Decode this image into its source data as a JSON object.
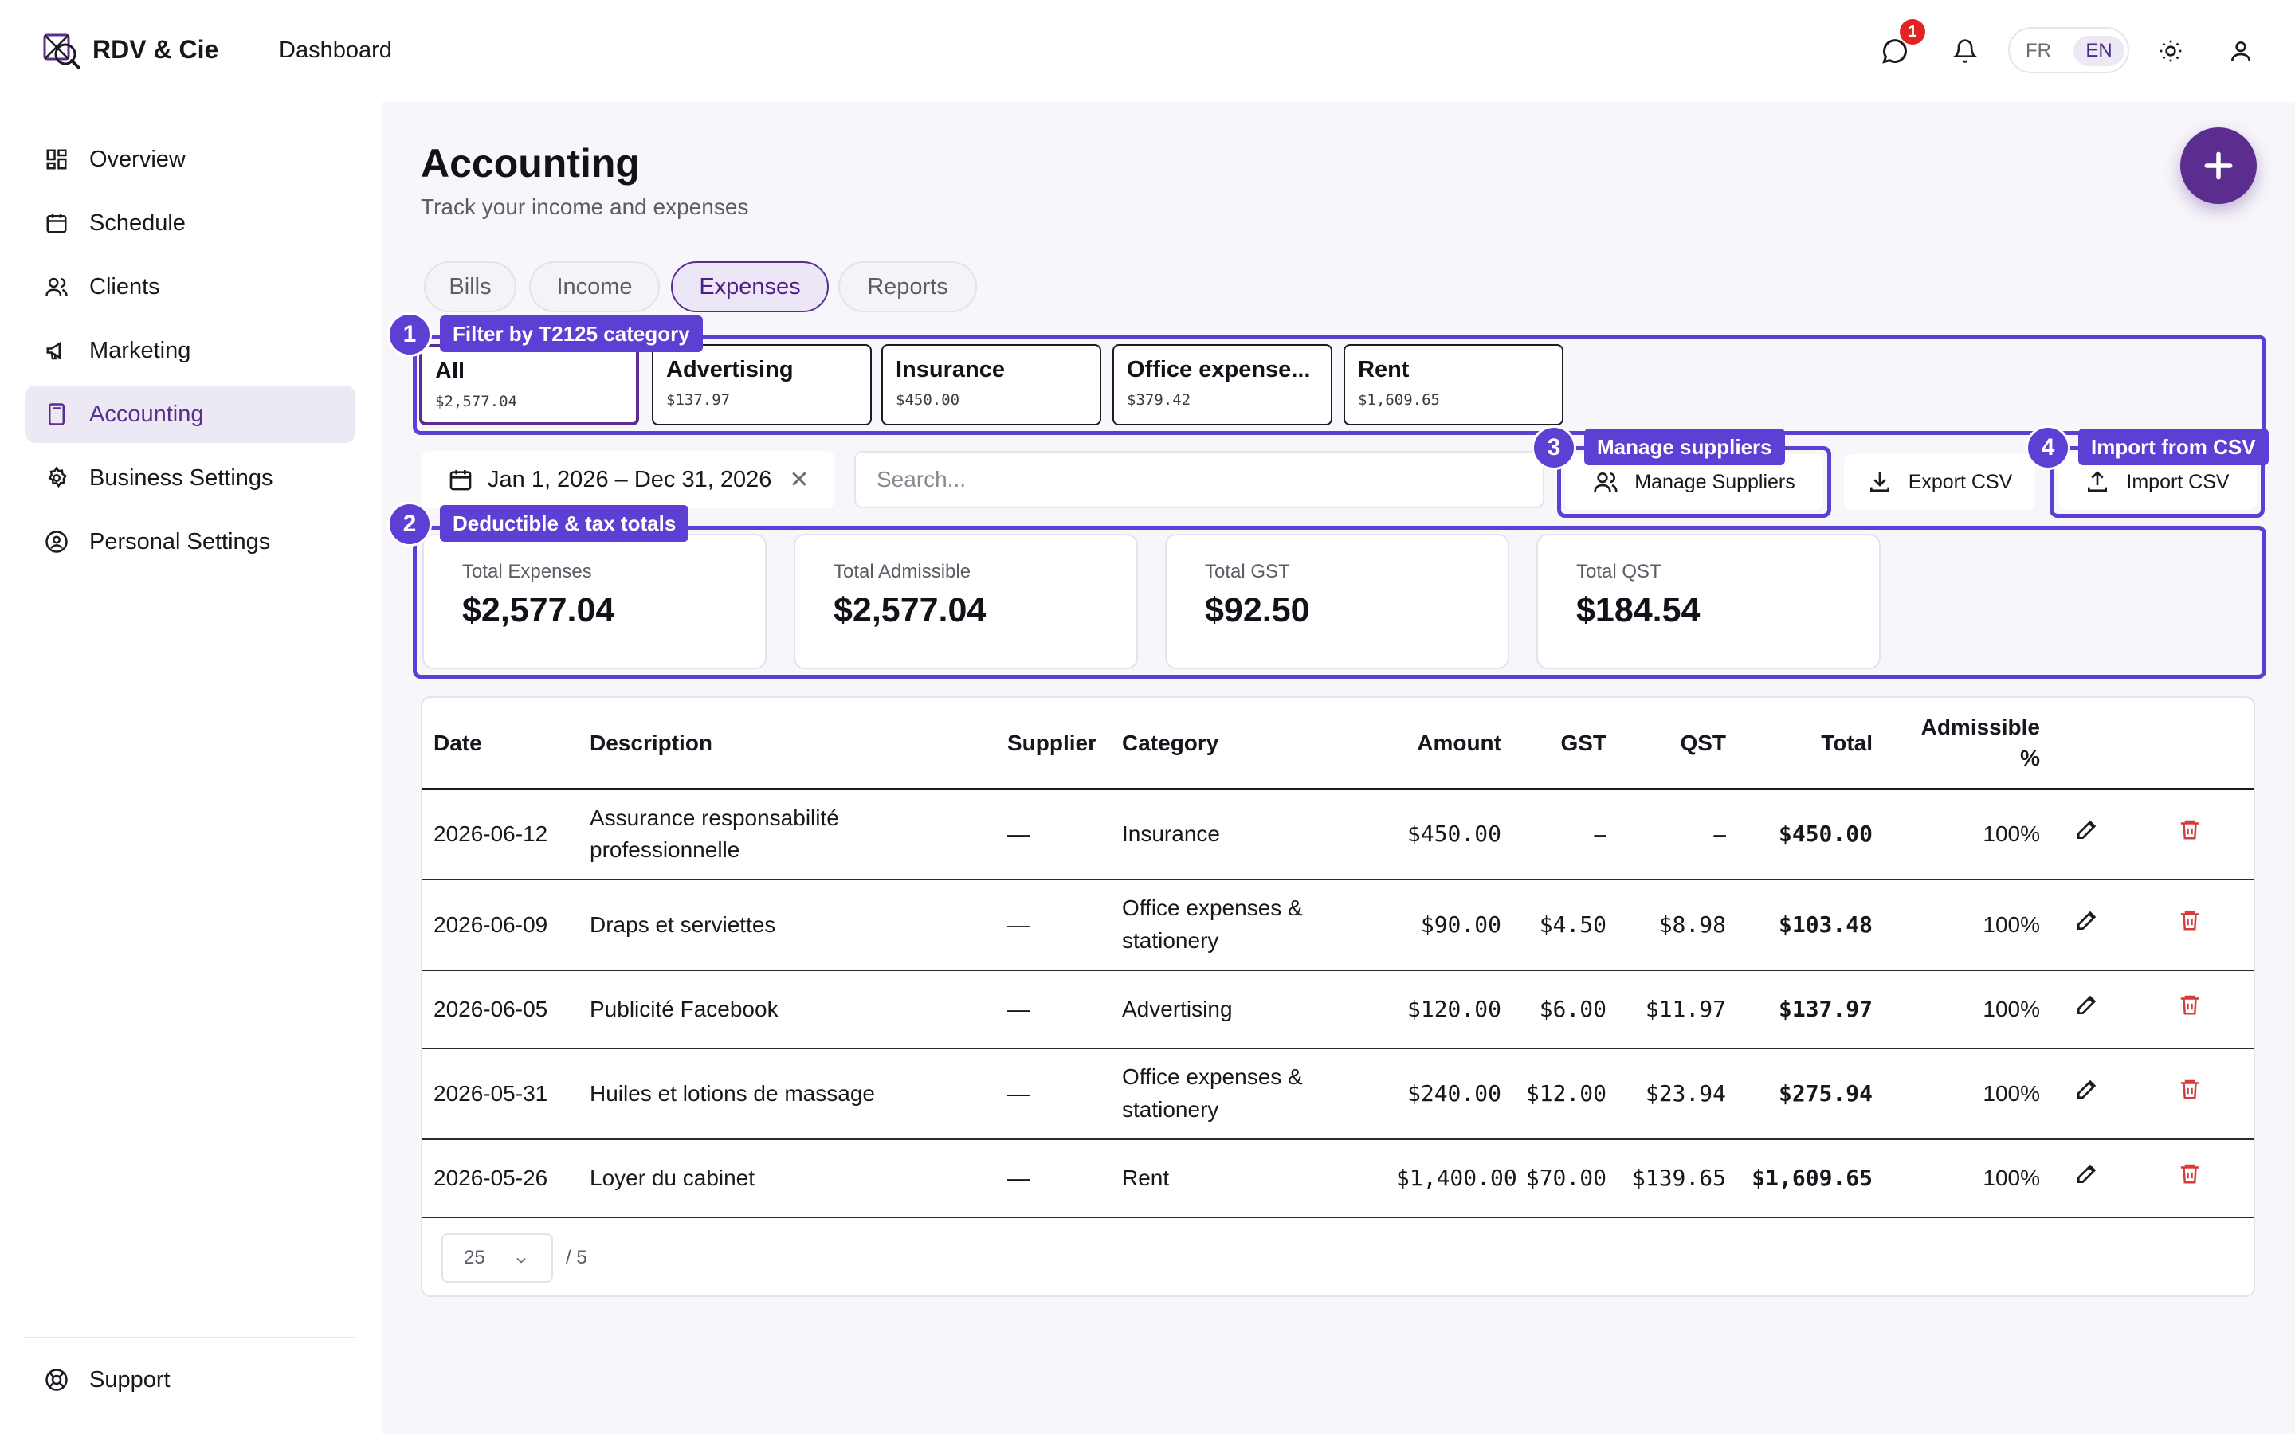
{
  "app": {
    "brand": "RDV & Cie",
    "breadcrumb": "Dashboard",
    "notification_count": "1",
    "accent": "#5b2d8e",
    "callout_color": "#5d3fd3",
    "delete_color": "#d63a3a"
  },
  "header": {
    "lang_fr": "FR",
    "lang_en": "EN"
  },
  "sidebar": {
    "items": [
      {
        "label": "Overview",
        "icon": "grid-icon"
      },
      {
        "label": "Schedule",
        "icon": "calendar-icon"
      },
      {
        "label": "Clients",
        "icon": "users-icon"
      },
      {
        "label": "Marketing",
        "icon": "megaphone-icon"
      },
      {
        "label": "Accounting",
        "icon": "calculator-icon",
        "active": true
      },
      {
        "label": "Business Settings",
        "icon": "gear-icon"
      },
      {
        "label": "Personal Settings",
        "icon": "user-circle-icon"
      }
    ],
    "support": "Support"
  },
  "page": {
    "title": "Accounting",
    "subtitle": "Track your income and expenses"
  },
  "tabs": [
    "Bills",
    "Income",
    "Expenses",
    "Reports"
  ],
  "active_tab": "Expenses",
  "callouts": [
    {
      "num": "1",
      "label": "Filter by T2125 category"
    },
    {
      "num": "2",
      "label": "Deductible & tax totals"
    },
    {
      "num": "3",
      "label": "Manage suppliers"
    },
    {
      "num": "4",
      "label": "Import from CSV"
    }
  ],
  "categories": [
    {
      "name": "All",
      "amount": "$2,577.04"
    },
    {
      "name": "Advertising",
      "amount": "$137.97"
    },
    {
      "name": "Insurance",
      "amount": "$450.00"
    },
    {
      "name": "Office expense...",
      "amount": "$379.42"
    },
    {
      "name": "Rent",
      "amount": "$1,609.65"
    }
  ],
  "filters": {
    "date_range": "Jan 1, 2026 – Dec 31, 2026",
    "clear": "✕",
    "search_placeholder": "Search...",
    "manage_suppliers": "Manage Suppliers",
    "export_csv": "Export CSV",
    "import_csv": "Import CSV"
  },
  "stats": [
    {
      "title": "Total Expenses",
      "value": "$2,577.04"
    },
    {
      "title": "Total Admissible",
      "value": "$2,577.04"
    },
    {
      "title": "Total GST",
      "value": "$92.50"
    },
    {
      "title": "Total QST",
      "value": "$184.54"
    }
  ],
  "table": {
    "headers": {
      "date": "Date",
      "description": "Description",
      "supplier": "Supplier",
      "category": "Category",
      "amount": "Amount",
      "gst": "GST",
      "qst": "QST",
      "total": "Total",
      "admissible": "Admissible %"
    },
    "rows": [
      {
        "date": "2026-06-12",
        "description": "Assurance responsabilité professionnelle",
        "supplier": "—",
        "category": "Insurance",
        "amount": "$450.00",
        "gst": "–",
        "qst": "–",
        "total": "$450.00",
        "admissible": "100%"
      },
      {
        "date": "2026-06-09",
        "description": "Draps et serviettes",
        "supplier": "—",
        "category": "Office expenses & stationery",
        "amount": "$90.00",
        "gst": "$4.50",
        "qst": "$8.98",
        "total": "$103.48",
        "admissible": "100%"
      },
      {
        "date": "2026-06-05",
        "description": "Publicité Facebook",
        "supplier": "—",
        "category": "Advertising",
        "amount": "$120.00",
        "gst": "$6.00",
        "qst": "$11.97",
        "total": "$137.97",
        "admissible": "100%"
      },
      {
        "date": "2026-05-31",
        "description": "Huiles et lotions de massage",
        "supplier": "—",
        "category": "Office expenses & stationery",
        "amount": "$240.00",
        "gst": "$12.00",
        "qst": "$23.94",
        "total": "$275.94",
        "admissible": "100%"
      },
      {
        "date": "2026-05-26",
        "description": "Loyer du cabinet",
        "supplier": "—",
        "category": "Rent",
        "amount": "$1,400.00",
        "gst": "$70.00",
        "qst": "$139.65",
        "total": "$1,609.65",
        "admissible": "100%"
      }
    ]
  },
  "pagination": {
    "page_size": "25",
    "total_pages": "/ 5"
  }
}
